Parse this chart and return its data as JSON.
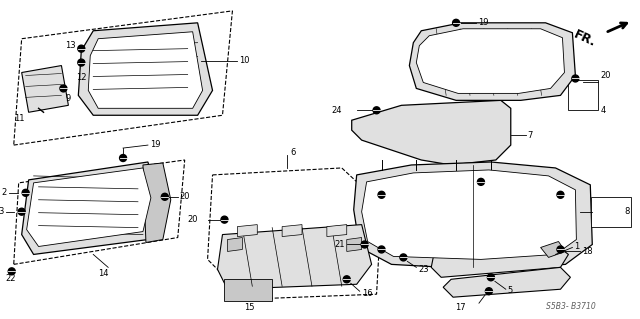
{
  "bg_color": "#ffffff",
  "diagram_code": "S5B3- B3710",
  "line_color": "#000000",
  "part_fill": "#e8e8e8",
  "part_fill2": "#d0d0d0"
}
